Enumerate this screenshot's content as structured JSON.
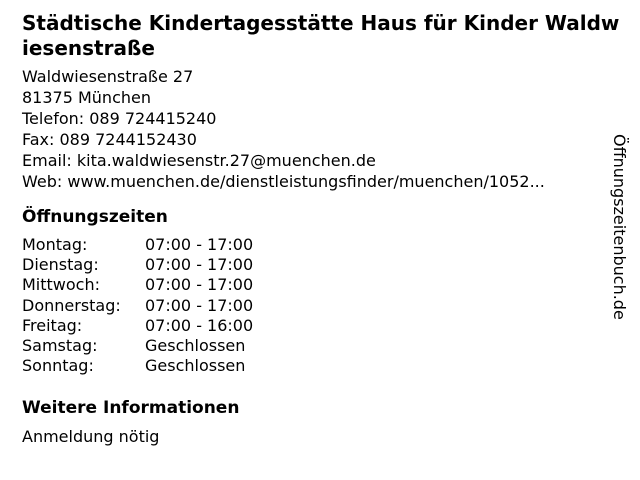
{
  "header": {
    "title": "Städtische Kindertagesstätte Haus für Kinder Waldwiesenstraße"
  },
  "contact": {
    "lines": [
      "Waldwiesenstraße 27",
      "81375 München",
      "Telefon: 089 724415240",
      "Fax: 089 7244152430",
      "Email: kita.waldwiesenstr.27@muenchen.de",
      "Web: www.muenchen.de/dienstleistungsfinder/muenchen/1052..."
    ]
  },
  "opening_hours": {
    "heading": "Öffnungszeiten",
    "rows": [
      {
        "day": "Montag:",
        "time": "07:00 - 17:00"
      },
      {
        "day": "Dienstag:",
        "time": "07:00 - 17:00"
      },
      {
        "day": "Mittwoch:",
        "time": "07:00 - 17:00"
      },
      {
        "day": "Donnerstag:",
        "time": "07:00 - 17:00"
      },
      {
        "day": "Freitag:",
        "time": "07:00 - 16:00"
      },
      {
        "day": "Samstag:",
        "time": "Geschlossen"
      },
      {
        "day": "Sonntag:",
        "time": "Geschlossen"
      }
    ]
  },
  "more_info": {
    "heading": "Weitere Informationen",
    "text": "Anmeldung nötig"
  },
  "watermark": {
    "text": "Öffnungszeitenbuch.de"
  },
  "colors": {
    "background": "#ffffff",
    "text": "#000000"
  }
}
